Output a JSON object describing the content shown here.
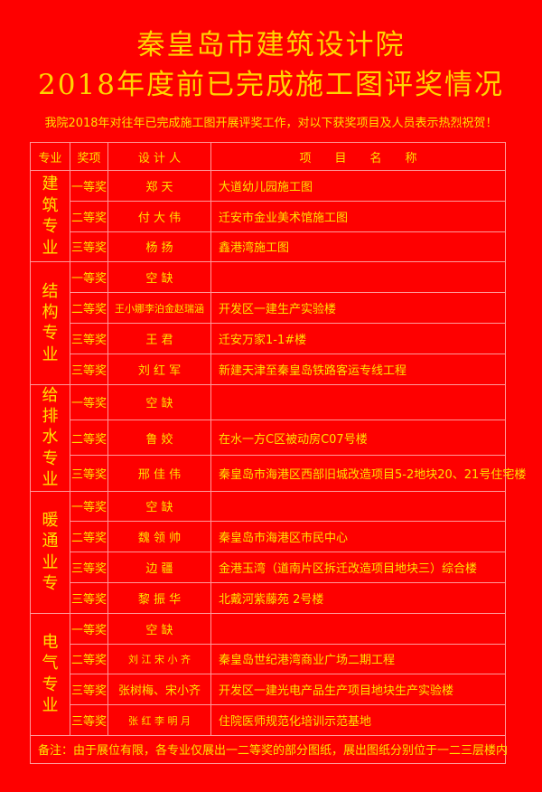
{
  "title_line1": "秦皇岛市建筑设计院",
  "title_line2": "2018年度前已完成施工图评奖情况",
  "subtitle": "我院2018年对往年已完成施工图开展评奖工作，对以下获奖项目及人员表示热烈祝贺！",
  "headers": [
    "专业",
    "奖项",
    "设 计 人",
    "项　　目　　名　　称"
  ],
  "groups": [
    {
      "major": [
        "建",
        "筑",
        "专",
        "业"
      ],
      "rows": [
        {
          "award": "一等奖",
          "designer": "郑 天",
          "project": "大道幼儿园施工图"
        },
        {
          "award": "二等奖",
          "designer": "付 大 伟",
          "project": "迁安市金业美术馆施工图"
        },
        {
          "award": "三等奖",
          "designer": "杨 扬",
          "project": "鑫港湾施工图"
        }
      ]
    },
    {
      "major": [
        "结",
        "构",
        "专",
        "业"
      ],
      "rows": [
        {
          "award": "一等奖",
          "designer": "空 缺",
          "project": ""
        },
        {
          "award": "二等奖",
          "designer": "王小娜李泊金赵瑞涵",
          "project": "开发区一建生产实验楼"
        },
        {
          "award": "三等奖",
          "designer": "王 君",
          "project": "迁安万家1-1#楼"
        },
        {
          "award": "三等奖",
          "designer": "刘 红 军",
          "project": "新建天津至秦皇岛铁路客运专线工程"
        }
      ]
    },
    {
      "major": [
        "给",
        "排",
        "水",
        "专",
        "业"
      ],
      "rows": [
        {
          "award": "一等奖",
          "designer": "空 缺",
          "project": ""
        },
        {
          "award": "二等奖",
          "designer": "鲁 姣",
          "project": "在水一方C区被动房C07号楼"
        },
        {
          "award": "三等奖",
          "designer": "邢 佳 伟",
          "project": "秦皇岛市海港区西部旧城改造项目5-2地块20、21号住宅楼"
        }
      ]
    },
    {
      "major": [
        "暖",
        "通",
        "业",
        "专"
      ],
      "rows": [
        {
          "award": "一等奖",
          "designer": "空 缺",
          "project": ""
        },
        {
          "award": "二等奖",
          "designer": "魏 领 帅",
          "project": "秦皇岛市海港区市民中心"
        },
        {
          "award": "三等奖",
          "designer": "边 疆",
          "project": "金港玉湾（道南片区拆迁改造项目地块三）综合楼"
        },
        {
          "award": "三等奖",
          "designer": "黎 振 华",
          "project": "北戴河紫藤苑 2号楼"
        }
      ]
    },
    {
      "major": [
        "电",
        "气",
        "专",
        "业"
      ],
      "rows": [
        {
          "award": "一等奖",
          "designer": "空 缺",
          "project": ""
        },
        {
          "award": "二等奖",
          "designer": "刘 江  宋 小 齐",
          "project": "秦皇岛世纪港湾商业广场二期工程"
        },
        {
          "award": "三等奖",
          "designer": "张树梅、宋小齐",
          "project": "开发区一建光电产品生产项目地块生产实验楼"
        },
        {
          "award": "三等奖",
          "designer": "张 红  李 明 月",
          "project": "住院医师规范化培训示范基地"
        }
      ]
    }
  ],
  "note": "备注：由于展位有限，各专业仅展出一二等奖的部分图纸，展出图纸分别位于一二三层楼内",
  "colors": {
    "background": "#fe0000",
    "text": "#ffe100",
    "grid": "#ff9a9a"
  }
}
